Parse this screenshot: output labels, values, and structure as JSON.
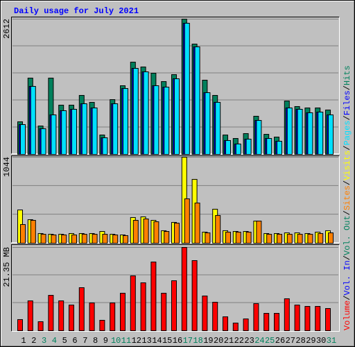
{
  "title": "Daily usage for July 2021",
  "title_color": "#0000ff",
  "legend_separator": "/",
  "chart_data": [
    {
      "type": "bar",
      "ylim": [
        0,
        2612
      ],
      "yticks": [
        2612
      ],
      "series": [
        {
          "name": "Hits",
          "color": "#00805c",
          "values": [
            630,
            1473,
            549,
            1473,
            951,
            951,
            1139,
            1005,
            375,
            1058,
            1326,
            1781,
            1688,
            1567,
            1406,
            1540,
            2612,
            2130,
            1433,
            1139,
            375,
            308,
            402,
            737,
            388,
            335,
            1031,
            924,
            897,
            897,
            857
          ]
        },
        {
          "name": "Files",
          "color": "#0000ff",
          "values": [
            576,
            1313,
            496,
            763,
            844,
            871,
            978,
            897,
            321,
            978,
            1272,
            1661,
            1594,
            1326,
            1299,
            1460,
            2532,
            2076,
            1192,
            1005,
            268,
            201,
            295,
            656,
            308,
            254,
            897,
            871,
            804,
            817,
            763
          ]
        },
        {
          "name": "Pages",
          "color": "#00e0ff",
          "values": [
            576,
            1313,
            496,
            763,
            844,
            871,
            978,
            897,
            321,
            978,
            1272,
            1661,
            1594,
            1326,
            1299,
            1460,
            2532,
            2076,
            1192,
            1005,
            268,
            201,
            295,
            656,
            308,
            254,
            897,
            871,
            804,
            817,
            763
          ]
        }
      ]
    },
    {
      "type": "bar",
      "ylim": [
        0,
        1044
      ],
      "yticks": [
        1044
      ],
      "series": [
        {
          "name": "Visits",
          "color": "#ffff00",
          "values": [
            404,
            286,
            118,
            109,
            109,
            118,
            118,
            118,
            143,
            109,
            101,
            312,
            320,
            278,
            152,
            253,
            1044,
            775,
            135,
            413,
            152,
            143,
            143,
            269,
            118,
            118,
            126,
            126,
            118,
            135,
            152
          ]
        },
        {
          "name": "Sites",
          "color": "#ff8000",
          "values": [
            227,
            278,
            109,
            101,
            101,
            101,
            109,
            109,
            109,
            101,
            93,
            278,
            295,
            261,
            143,
            244,
            539,
            488,
            126,
            337,
            135,
            135,
            135,
            269,
            109,
            109,
            109,
            109,
            109,
            118,
            126
          ]
        }
      ]
    },
    {
      "type": "bar",
      "categories": [
        "1",
        "2",
        "3",
        "4",
        "5",
        "6",
        "7",
        "8",
        "9",
        "10",
        "11",
        "12",
        "13",
        "14",
        "15",
        "16",
        "17",
        "18",
        "19",
        "20",
        "21",
        "22",
        "23",
        "24",
        "25",
        "26",
        "27",
        "28",
        "29",
        "30",
        "31"
      ],
      "category_color": "#000000",
      "highlight_color": "#00805c",
      "highlight": [
        2,
        3,
        9,
        10,
        16,
        17,
        23,
        24,
        30
      ],
      "ylim": [
        0,
        21.35
      ],
      "yticks": [
        {
          "value": 21.35,
          "label": "21.35 MB"
        }
      ],
      "series": [
        {
          "name": "Volume",
          "color": "#ff0000",
          "values": [
            2.85,
            7.65,
            2.31,
            9.07,
            7.65,
            6.58,
            11.03,
            7.12,
            2.67,
            7.12,
            9.61,
            14.06,
            12.28,
            17.61,
            9.61,
            12.81,
            21.35,
            17.97,
            8.9,
            7.3,
            3.56,
            1.96,
            3.02,
            6.94,
            4.45,
            4.45,
            8.19,
            6.58,
            6.23,
            6.23,
            5.69
          ]
        }
      ],
      "legend_only": [
        {
          "name": "Vol. Out",
          "color": "#00805c"
        },
        {
          "name": "Vol. In",
          "color": "#0000ff"
        }
      ]
    }
  ]
}
